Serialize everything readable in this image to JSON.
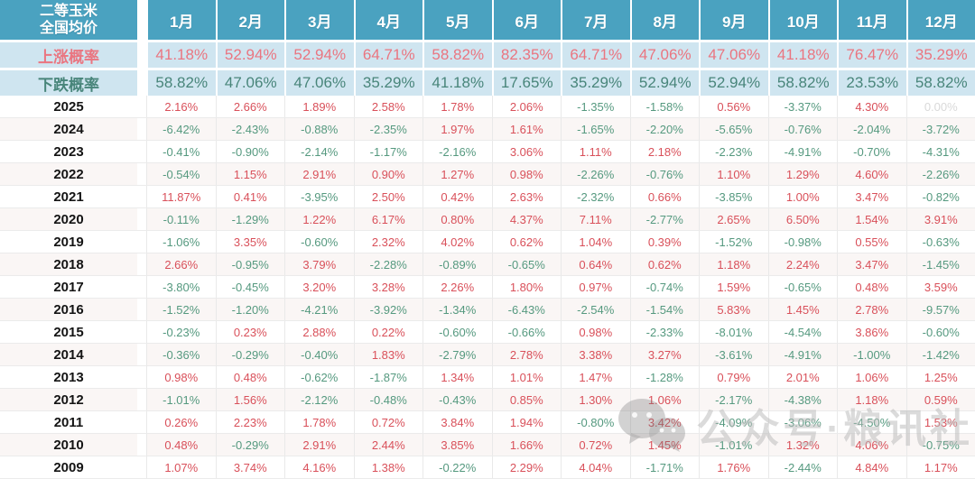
{
  "table": {
    "corner_label_line1": "二等玉米",
    "corner_label_line2": "全国均价",
    "months": [
      "1月",
      "2月",
      "3月",
      "4月",
      "5月",
      "6月",
      "7月",
      "8月",
      "9月",
      "10月",
      "11月",
      "12月"
    ],
    "prob_rows": [
      {
        "label": "上涨概率",
        "type": "up",
        "values": [
          "41.18%",
          "52.94%",
          "52.94%",
          "64.71%",
          "58.82%",
          "82.35%",
          "64.71%",
          "47.06%",
          "47.06%",
          "41.18%",
          "76.47%",
          "35.29%"
        ]
      },
      {
        "label": "下跌概率",
        "type": "down",
        "values": [
          "58.82%",
          "47.06%",
          "47.06%",
          "35.29%",
          "41.18%",
          "17.65%",
          "35.29%",
          "52.94%",
          "52.94%",
          "58.82%",
          "23.53%",
          "58.82%"
        ]
      }
    ],
    "year_rows": [
      {
        "year": "2025",
        "values": [
          "2.16%",
          "2.66%",
          "1.89%",
          "2.58%",
          "1.78%",
          "2.06%",
          "-1.35%",
          "-1.58%",
          "0.56%",
          "-3.37%",
          "4.30%",
          "0.00%"
        ]
      },
      {
        "year": "2024",
        "values": [
          "-6.42%",
          "-2.43%",
          "-0.88%",
          "-2.35%",
          "1.97%",
          "1.61%",
          "-1.65%",
          "-2.20%",
          "-5.65%",
          "-0.76%",
          "-2.04%",
          "-3.72%"
        ]
      },
      {
        "year": "2023",
        "values": [
          "-0.41%",
          "-0.90%",
          "-2.14%",
          "-1.17%",
          "-2.16%",
          "3.06%",
          "1.11%",
          "2.18%",
          "-2.23%",
          "-4.91%",
          "-0.70%",
          "-4.31%"
        ]
      },
      {
        "year": "2022",
        "values": [
          "-0.54%",
          "1.15%",
          "2.91%",
          "0.90%",
          "1.27%",
          "0.98%",
          "-2.26%",
          "-0.76%",
          "1.10%",
          "1.29%",
          "4.60%",
          "-2.26%"
        ]
      },
      {
        "year": "2021",
        "values": [
          "11.87%",
          "0.41%",
          "-3.95%",
          "2.50%",
          "0.42%",
          "2.63%",
          "-2.32%",
          "0.66%",
          "-3.85%",
          "1.00%",
          "3.47%",
          "-0.82%"
        ]
      },
      {
        "year": "2020",
        "values": [
          "-0.11%",
          "-1.29%",
          "1.22%",
          "6.17%",
          "0.80%",
          "4.37%",
          "7.11%",
          "-2.77%",
          "2.65%",
          "6.50%",
          "1.54%",
          "3.91%"
        ]
      },
      {
        "year": "2019",
        "values": [
          "-1.06%",
          "3.35%",
          "-0.60%",
          "2.32%",
          "4.02%",
          "0.62%",
          "1.04%",
          "0.39%",
          "-1.52%",
          "-0.98%",
          "0.55%",
          "-0.63%"
        ]
      },
      {
        "year": "2018",
        "values": [
          "2.66%",
          "-0.95%",
          "3.79%",
          "-2.28%",
          "-0.89%",
          "-0.65%",
          "0.64%",
          "0.62%",
          "1.18%",
          "2.24%",
          "3.47%",
          "-1.45%"
        ]
      },
      {
        "year": "2017",
        "values": [
          "-3.80%",
          "-0.45%",
          "3.20%",
          "3.28%",
          "2.26%",
          "1.80%",
          "0.97%",
          "-0.74%",
          "1.59%",
          "-0.65%",
          "0.48%",
          "3.59%"
        ]
      },
      {
        "year": "2016",
        "values": [
          "-1.52%",
          "-1.20%",
          "-4.21%",
          "-3.92%",
          "-1.34%",
          "-6.43%",
          "-2.54%",
          "-1.54%",
          "5.83%",
          "1.45%",
          "2.78%",
          "-9.57%"
        ]
      },
      {
        "year": "2015",
        "values": [
          "-0.23%",
          "0.23%",
          "2.88%",
          "0.22%",
          "-0.60%",
          "-0.66%",
          "0.98%",
          "-2.33%",
          "-8.01%",
          "-4.54%",
          "3.86%",
          "-0.60%"
        ]
      },
      {
        "year": "2014",
        "values": [
          "-0.36%",
          "-0.29%",
          "-0.40%",
          "1.83%",
          "-2.79%",
          "2.78%",
          "3.38%",
          "3.27%",
          "-3.61%",
          "-4.91%",
          "-1.00%",
          "-1.42%"
        ]
      },
      {
        "year": "2013",
        "values": [
          "0.98%",
          "0.48%",
          "-0.62%",
          "-1.87%",
          "1.34%",
          "1.01%",
          "1.47%",
          "-1.28%",
          "0.79%",
          "2.01%",
          "1.06%",
          "1.25%"
        ]
      },
      {
        "year": "2012",
        "values": [
          "-1.01%",
          "1.56%",
          "-2.12%",
          "-0.48%",
          "-0.43%",
          "0.85%",
          "1.30%",
          "1.06%",
          "-2.17%",
          "-4.38%",
          "1.18%",
          "0.59%"
        ]
      },
      {
        "year": "2011",
        "values": [
          "0.26%",
          "2.23%",
          "1.78%",
          "0.72%",
          "3.84%",
          "1.94%",
          "-0.80%",
          "3.42%",
          "-4.09%",
          "-3.06%",
          "-4.50%",
          "1.53%"
        ]
      },
      {
        "year": "2010",
        "values": [
          "0.48%",
          "-0.29%",
          "2.91%",
          "2.44%",
          "3.85%",
          "1.66%",
          "0.72%",
          "1.45%",
          "-1.01%",
          "1.32%",
          "4.06%",
          "-0.75%"
        ]
      },
      {
        "year": "2009",
        "values": [
          "1.07%",
          "3.74%",
          "4.16%",
          "1.38%",
          "-0.22%",
          "2.29%",
          "4.04%",
          "-1.71%",
          "1.76%",
          "-2.44%",
          "4.84%",
          "1.17%"
        ]
      }
    ]
  },
  "watermark": {
    "text": "公众号·粮讯社",
    "icon": "wechat-icon"
  },
  "colors": {
    "header_bg": "#4aa2c0",
    "prob_bg": "#cfe5f0",
    "positive_red": "#d9505a",
    "negative_green": "#55997f",
    "prob_up_red": "#ea7580",
    "prob_down_green": "#48857a",
    "muted_gray": "#d9d9d9"
  }
}
